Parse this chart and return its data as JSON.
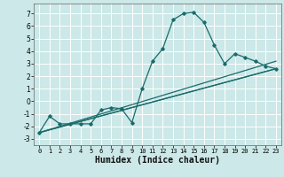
{
  "xlabel": "Humidex (Indice chaleur)",
  "bg_color": "#cce8e8",
  "grid_color": "#ffffff",
  "line_color": "#1a6b6b",
  "xlim": [
    -0.5,
    23.5
  ],
  "ylim": [
    -3.5,
    7.8
  ],
  "xticks": [
    0,
    1,
    2,
    3,
    4,
    5,
    6,
    7,
    8,
    9,
    10,
    11,
    12,
    13,
    14,
    15,
    16,
    17,
    18,
    19,
    20,
    21,
    22,
    23
  ],
  "yticks": [
    -3,
    -2,
    -1,
    0,
    1,
    2,
    3,
    4,
    5,
    6,
    7
  ],
  "curve1_x": [
    0,
    1,
    2,
    3,
    4,
    5,
    6,
    7,
    8,
    9,
    10,
    11,
    12,
    13,
    14,
    15,
    16,
    17,
    18,
    19,
    20,
    21,
    22,
    23
  ],
  "curve1_y": [
    -2.5,
    -1.2,
    -1.8,
    -1.8,
    -1.8,
    -1.8,
    -0.7,
    -0.5,
    -0.6,
    -1.7,
    1.0,
    3.2,
    4.2,
    6.5,
    7.0,
    7.1,
    6.3,
    4.5,
    3.0,
    3.8,
    3.5,
    3.2,
    2.8,
    2.6
  ],
  "line1_x": [
    0,
    23
  ],
  "line1_y": [
    -2.5,
    3.2
  ],
  "line2_x": [
    0,
    23
  ],
  "line2_y": [
    -2.5,
    2.6
  ],
  "line3_x": [
    0,
    9,
    23
  ],
  "line3_y": [
    -2.5,
    -0.5,
    2.6
  ],
  "tick_fontsize": 5.5,
  "xlabel_fontsize": 7
}
